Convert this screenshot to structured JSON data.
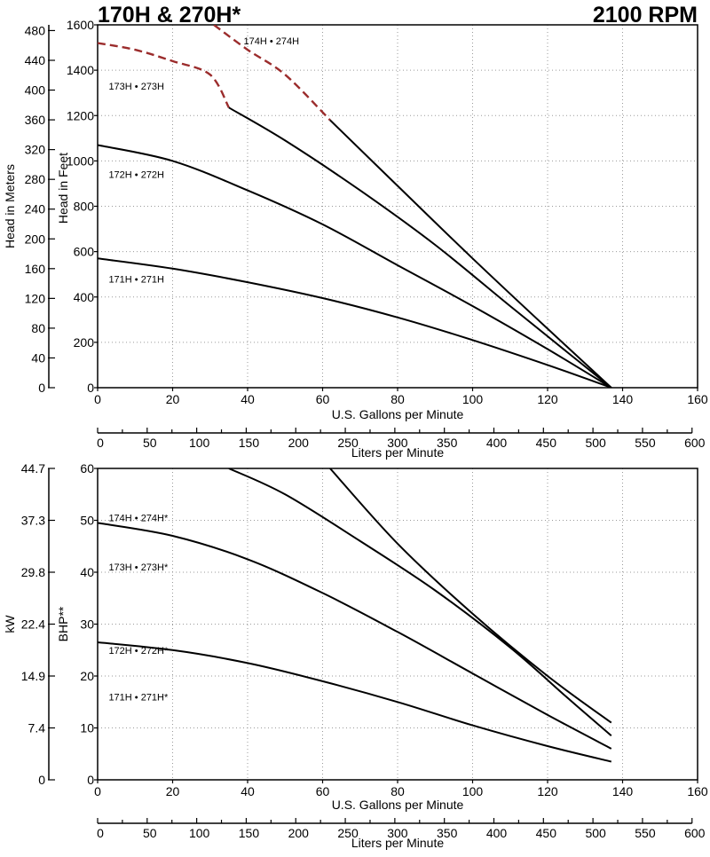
{
  "header": {
    "title_left": "170H & 270H*",
    "title_right": "2100 RPM"
  },
  "colors": {
    "curve": "#000000",
    "extrapolated": "#9b2c2c",
    "grid": "#9a9a9a"
  },
  "chart_data": [
    {
      "id": "head",
      "type": "line",
      "title": "170H & 270H*",
      "subtitle": "2100 RPM",
      "xlabel": "U.S. Gallons per Minute",
      "ylabel": "Head in Feet",
      "y2label": "Head in Meters",
      "x2label": "Liters per Minute",
      "xlim": [
        0,
        160
      ],
      "ylim": [
        0,
        1600
      ],
      "xticks": [
        0,
        20,
        40,
        60,
        80,
        100,
        120,
        140,
        160
      ],
      "yticks": [
        0,
        200,
        400,
        600,
        800,
        1000,
        1200,
        1400,
        1600
      ],
      "y2ticks": [
        0,
        40,
        80,
        120,
        160,
        200,
        240,
        280,
        320,
        360,
        400,
        440,
        480
      ],
      "x2ticks": [
        0,
        50,
        100,
        150,
        200,
        250,
        300,
        350,
        400,
        450,
        500,
        550,
        600
      ],
      "grid": true,
      "series": [
        {
          "name": "171H • 271H",
          "label": "171H • 271H",
          "label_at": [
            2,
            480
          ],
          "x": [
            0,
            20,
            40,
            60,
            80,
            100,
            120,
            137
          ],
          "y": [
            570,
            525,
            465,
            395,
            310,
            210,
            100,
            0
          ]
        },
        {
          "name": "172H • 272H",
          "label": "172H • 272H",
          "label_at": [
            2,
            940
          ],
          "x": [
            0,
            20,
            40,
            60,
            80,
            100,
            120,
            137
          ],
          "y": [
            1070,
            1000,
            870,
            720,
            540,
            360,
            170,
            0
          ]
        },
        {
          "name": "173H • 273H",
          "label": "173H • 273H",
          "label_at": [
            2,
            1330
          ],
          "x": [
            0,
            10,
            20,
            30,
            35,
            50,
            70,
            90,
            110,
            125,
            137
          ],
          "y": [
            1520,
            1490,
            1440,
            1380,
            1235,
            1090,
            870,
            630,
            360,
            160,
            0
          ],
          "dashed_until": 35
        },
        {
          "name": "174H • 274H",
          "label": "174H • 274H",
          "label_at": [
            38,
            1530
          ],
          "x": [
            31,
            40,
            50,
            62,
            80,
            100,
            120,
            137
          ],
          "y": [
            1600,
            1490,
            1380,
            1180,
            890,
            570,
            260,
            0
          ],
          "dashed_until": 62
        }
      ]
    },
    {
      "id": "power",
      "type": "line",
      "xlabel": "U.S. Gallons per Minute",
      "ylabel": "BHP**",
      "y2label": "kW",
      "x2label": "Liters per Minute",
      "xlim": [
        0,
        160
      ],
      "ylim": [
        0,
        60
      ],
      "xticks": [
        0,
        20,
        40,
        60,
        80,
        100,
        120,
        140,
        160
      ],
      "yticks": [
        0,
        10,
        20,
        30,
        40,
        50,
        60
      ],
      "y2ticks": [
        "0",
        "7.4",
        "14.9",
        "22.4",
        "29.8",
        "37.3",
        "44.7"
      ],
      "x2ticks": [
        0,
        50,
        100,
        150,
        200,
        250,
        300,
        350,
        400,
        450,
        500,
        550,
        600
      ],
      "grid": true,
      "series": [
        {
          "name": "171H • 271H*",
          "label": "171H • 271H*",
          "label_at": [
            2,
            16
          ],
          "x": [
            0,
            20,
            40,
            60,
            80,
            100,
            120,
            137
          ],
          "y": [
            26.5,
            25,
            22.5,
            19,
            15,
            10.5,
            6.5,
            3.5
          ]
        },
        {
          "name": "172H • 272H*",
          "label": "172H • 272H*",
          "label_at": [
            2,
            25
          ],
          "x": [
            0,
            20,
            40,
            60,
            80,
            100,
            120,
            137
          ],
          "y": [
            49.5,
            47,
            42.5,
            36,
            28.5,
            20.5,
            12.5,
            6
          ]
        },
        {
          "name": "173H • 273H*",
          "label": "173H • 273H*",
          "label_at": [
            2,
            41
          ],
          "x": [
            35,
            50,
            70,
            90,
            110,
            125,
            137
          ],
          "y": [
            60,
            55,
            46,
            36.5,
            25.5,
            16,
            8.5
          ]
        },
        {
          "name": "174H • 274H*",
          "label": "174H • 274H*",
          "label_at": [
            2,
            50.5
          ],
          "x": [
            62,
            80,
            100,
            120,
            137
          ],
          "y": [
            60,
            45.5,
            32,
            20,
            11
          ]
        }
      ]
    }
  ]
}
